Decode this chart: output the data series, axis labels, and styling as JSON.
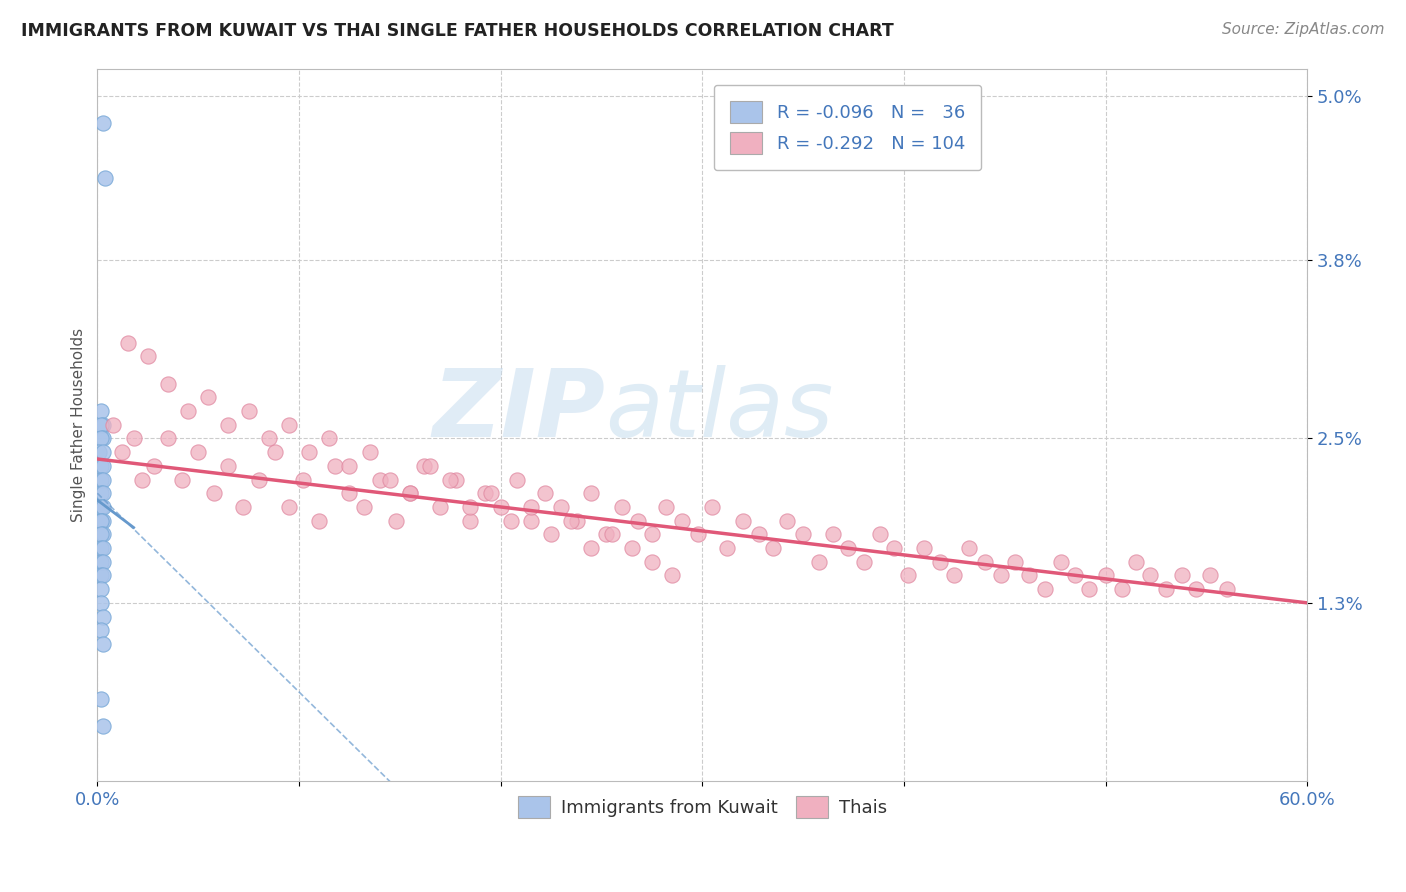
{
  "title": "IMMIGRANTS FROM KUWAIT VS THAI SINGLE FATHER HOUSEHOLDS CORRELATION CHART",
  "source": "Source: ZipAtlas.com",
  "xlabel_label": "Immigrants from Kuwait",
  "xlabel_label2": "Thais",
  "ylabel": "Single Father Households",
  "xlim": [
    0.0,
    0.6
  ],
  "ylim": [
    0.0,
    0.052
  ],
  "ytick_vals": [
    0.013,
    0.025,
    0.038,
    0.05
  ],
  "ytick_labels": [
    "1.3%",
    "2.5%",
    "3.8%",
    "5.0%"
  ],
  "blue_color": "#aac4ea",
  "blue_edge": "#7aaad8",
  "pink_color": "#f0b0c0",
  "pink_edge": "#e088a0",
  "blue_line_color": "#6699cc",
  "pink_line_color": "#e05878",
  "watermark_zip": "ZIP",
  "watermark_atlas": "atlas",
  "blue_scatter_x": [
    0.003,
    0.004,
    0.002,
    0.003,
    0.002,
    0.003,
    0.002,
    0.001,
    0.003,
    0.002,
    0.003,
    0.002,
    0.003,
    0.002,
    0.003,
    0.002,
    0.002,
    0.003,
    0.002,
    0.003,
    0.002,
    0.003,
    0.002,
    0.002,
    0.003,
    0.002,
    0.003,
    0.002,
    0.003,
    0.002,
    0.002,
    0.003,
    0.002,
    0.003,
    0.002,
    0.003
  ],
  "blue_scatter_y": [
    0.048,
    0.044,
    0.027,
    0.026,
    0.026,
    0.025,
    0.025,
    0.024,
    0.024,
    0.023,
    0.023,
    0.022,
    0.022,
    0.021,
    0.021,
    0.02,
    0.02,
    0.02,
    0.019,
    0.019,
    0.019,
    0.018,
    0.018,
    0.017,
    0.017,
    0.016,
    0.016,
    0.015,
    0.015,
    0.014,
    0.013,
    0.012,
    0.011,
    0.01,
    0.006,
    0.004
  ],
  "pink_scatter_x": [
    0.008,
    0.012,
    0.018,
    0.022,
    0.028,
    0.035,
    0.042,
    0.05,
    0.058,
    0.065,
    0.072,
    0.08,
    0.088,
    0.095,
    0.102,
    0.11,
    0.118,
    0.125,
    0.132,
    0.14,
    0.148,
    0.155,
    0.162,
    0.17,
    0.178,
    0.185,
    0.192,
    0.2,
    0.208,
    0.215,
    0.222,
    0.23,
    0.238,
    0.245,
    0.252,
    0.26,
    0.268,
    0.275,
    0.282,
    0.29,
    0.298,
    0.305,
    0.312,
    0.32,
    0.328,
    0.335,
    0.342,
    0.35,
    0.358,
    0.365,
    0.372,
    0.38,
    0.388,
    0.395,
    0.402,
    0.41,
    0.418,
    0.425,
    0.432,
    0.44,
    0.448,
    0.455,
    0.462,
    0.47,
    0.478,
    0.485,
    0.492,
    0.5,
    0.508,
    0.515,
    0.522,
    0.53,
    0.538,
    0.545,
    0.552,
    0.56,
    0.015,
    0.025,
    0.035,
    0.045,
    0.055,
    0.065,
    0.075,
    0.085,
    0.095,
    0.105,
    0.115,
    0.125,
    0.135,
    0.145,
    0.155,
    0.165,
    0.175,
    0.185,
    0.195,
    0.205,
    0.215,
    0.225,
    0.235,
    0.245,
    0.255,
    0.265,
    0.275,
    0.285
  ],
  "pink_scatter_y": [
    0.026,
    0.024,
    0.025,
    0.022,
    0.023,
    0.025,
    0.022,
    0.024,
    0.021,
    0.023,
    0.02,
    0.022,
    0.024,
    0.02,
    0.022,
    0.019,
    0.023,
    0.021,
    0.02,
    0.022,
    0.019,
    0.021,
    0.023,
    0.02,
    0.022,
    0.019,
    0.021,
    0.02,
    0.022,
    0.019,
    0.021,
    0.02,
    0.019,
    0.021,
    0.018,
    0.02,
    0.019,
    0.018,
    0.02,
    0.019,
    0.018,
    0.02,
    0.017,
    0.019,
    0.018,
    0.017,
    0.019,
    0.018,
    0.016,
    0.018,
    0.017,
    0.016,
    0.018,
    0.017,
    0.015,
    0.017,
    0.016,
    0.015,
    0.017,
    0.016,
    0.015,
    0.016,
    0.015,
    0.014,
    0.016,
    0.015,
    0.014,
    0.015,
    0.014,
    0.016,
    0.015,
    0.014,
    0.015,
    0.014,
    0.015,
    0.014,
    0.032,
    0.031,
    0.029,
    0.027,
    0.028,
    0.026,
    0.027,
    0.025,
    0.026,
    0.024,
    0.025,
    0.023,
    0.024,
    0.022,
    0.021,
    0.023,
    0.022,
    0.02,
    0.021,
    0.019,
    0.02,
    0.018,
    0.019,
    0.017,
    0.018,
    0.017,
    0.016,
    0.015
  ]
}
